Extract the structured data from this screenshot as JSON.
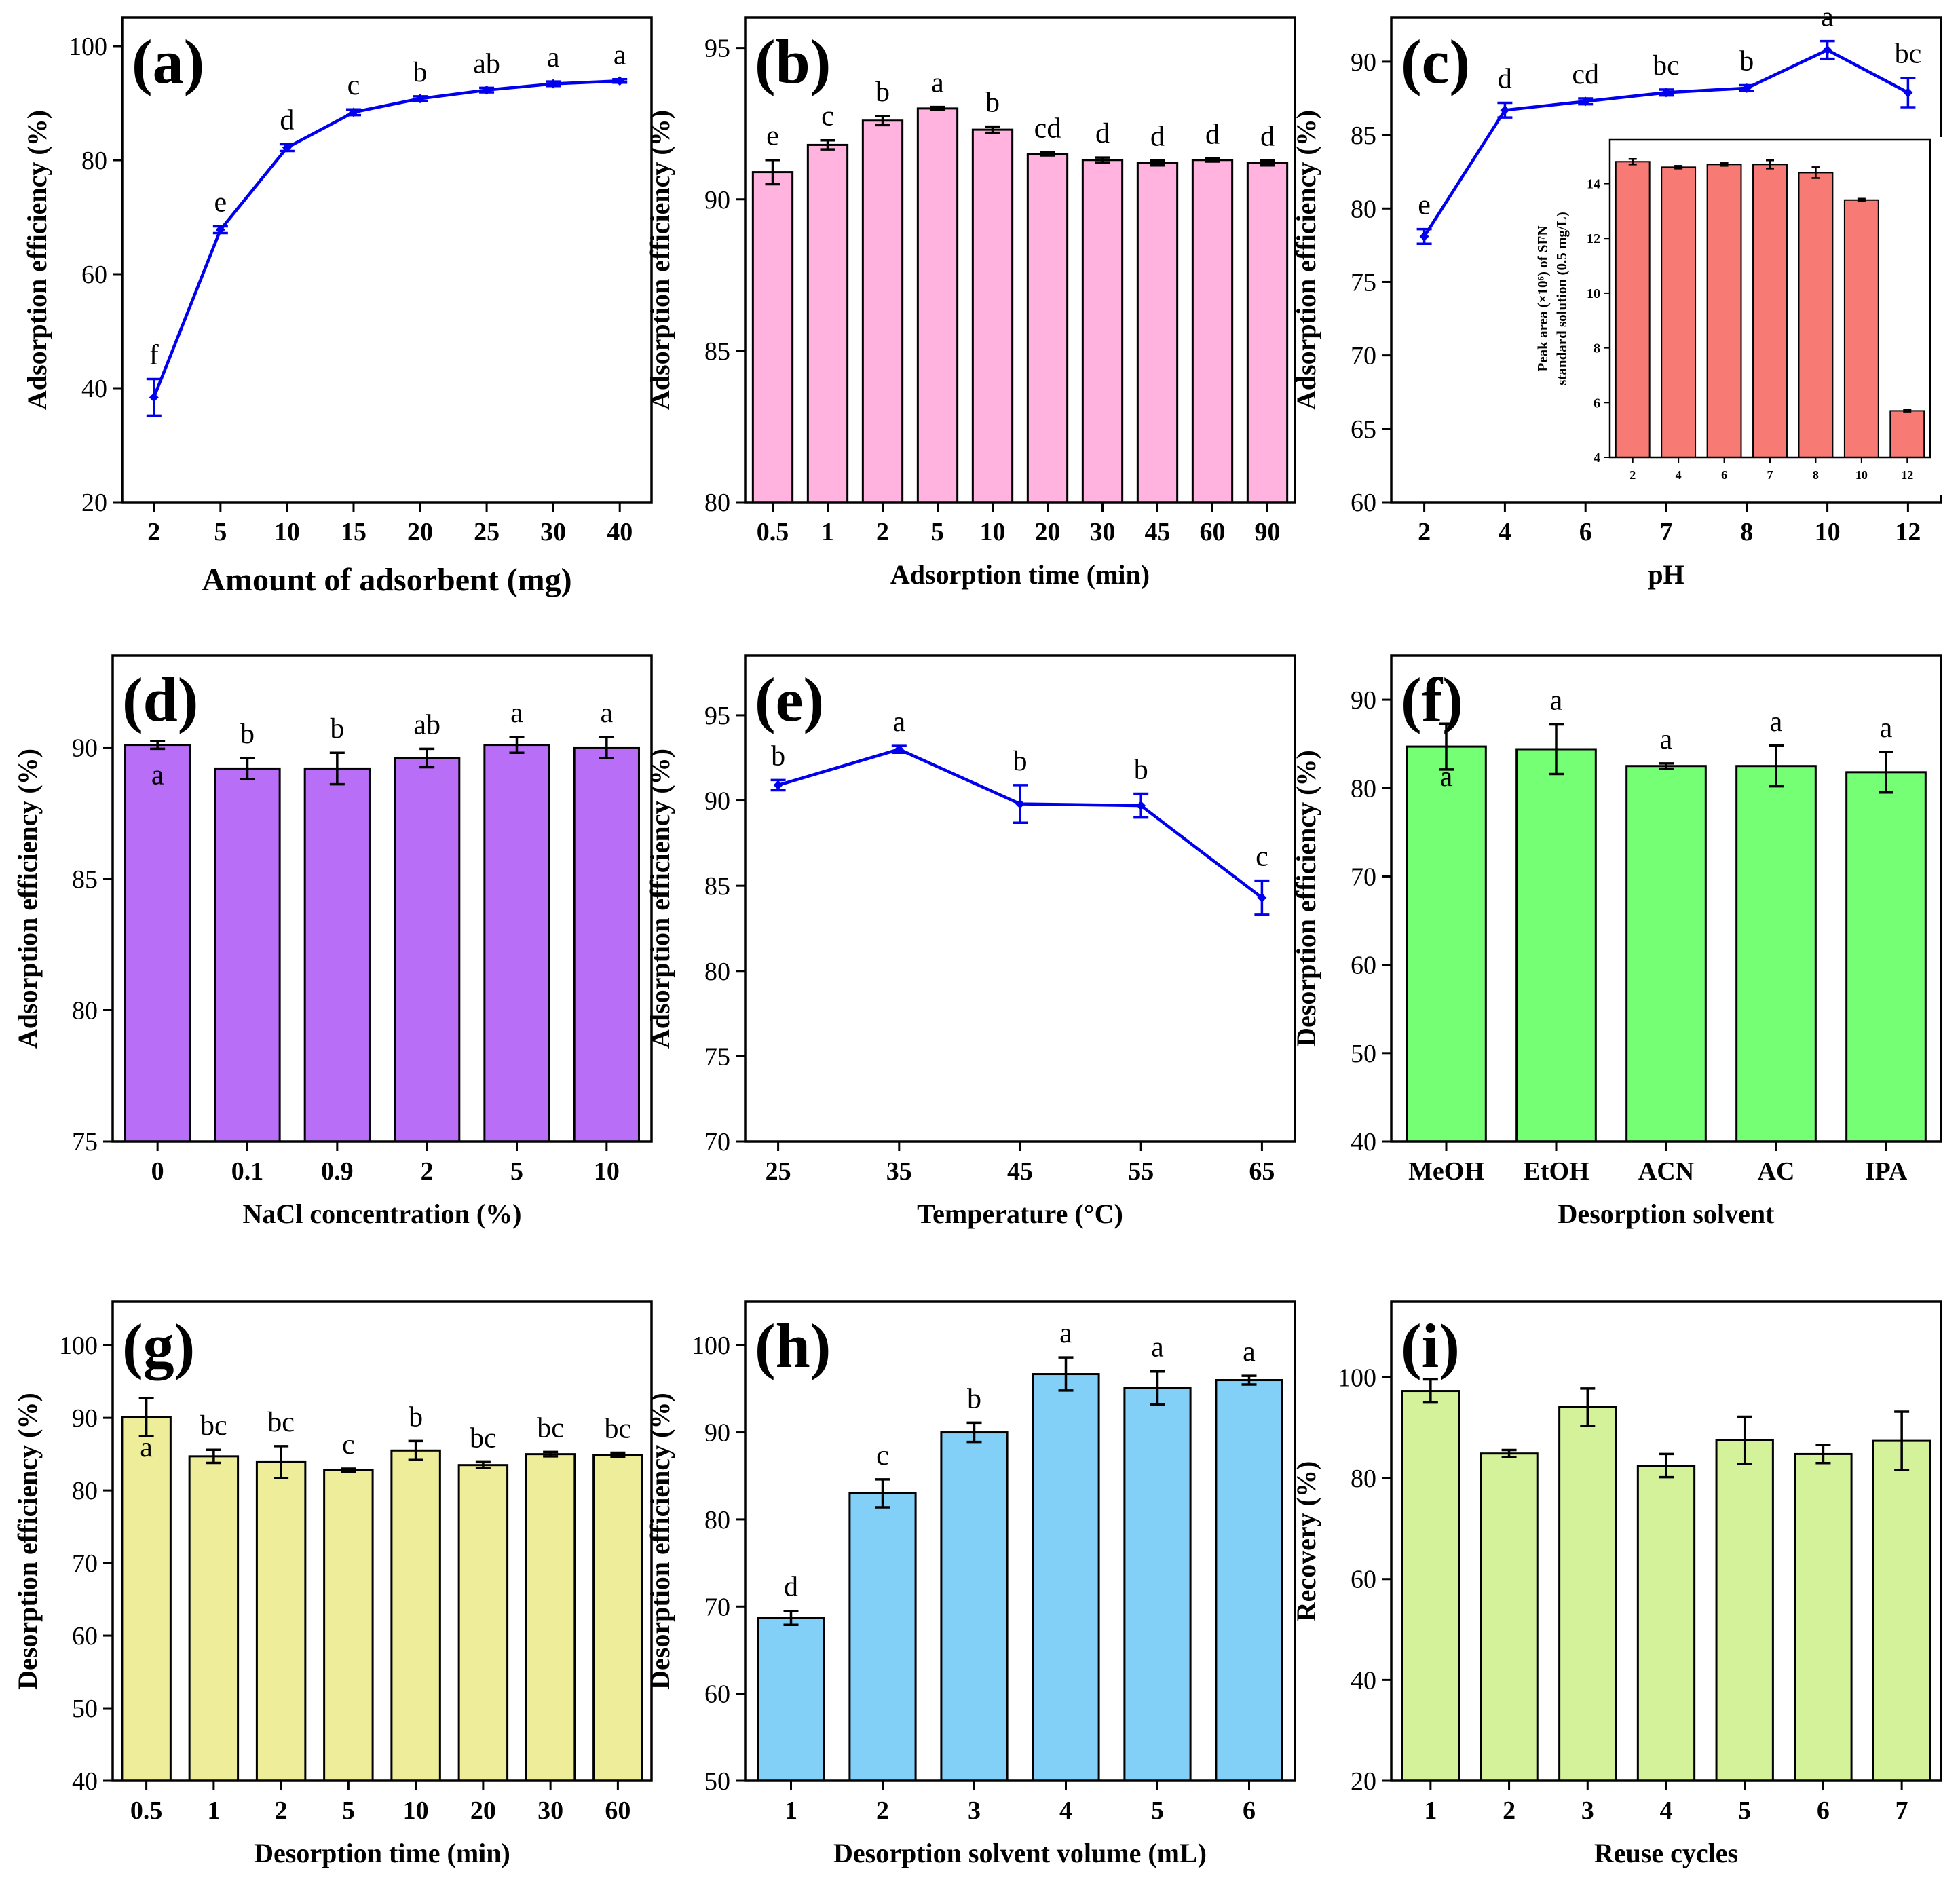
{
  "figure": {
    "description_text": ""
  },
  "colors": {
    "line_blue": "#0000ee",
    "pink": "#ffb3de",
    "salmon": "#f77a74",
    "purple": "#b86ef7",
    "green": "#75ff75",
    "yellow": "#eeee9a",
    "sky": "#82cff8",
    "lime": "#d3f29a"
  },
  "chart_data": [
    {
      "panel": "a",
      "type": "line",
      "label": "(a)",
      "color": "line_blue",
      "categories": [
        "2",
        "5",
        "10",
        "15",
        "20",
        "25",
        "30",
        "40"
      ],
      "values": [
        38.4,
        67.8,
        82.2,
        88.4,
        90.8,
        92.3,
        93.4,
        93.9
      ],
      "errors": [
        3.2,
        0.6,
        0.6,
        0.5,
        0.4,
        0.4,
        0.4,
        0.3
      ],
      "letters": [
        "f",
        "e",
        "d",
        "c",
        "b",
        "ab",
        "a",
        "a"
      ],
      "xlabel": "Amount of adsorbent (mg)",
      "ylabel": "Adsorption efficiency (%)",
      "ylim": [
        20,
        105
      ],
      "yticks": [
        20,
        40,
        60,
        80,
        100
      ]
    },
    {
      "panel": "b",
      "type": "bar",
      "label": "(b)",
      "color": "pink",
      "categories": [
        "0.5",
        "1",
        "2",
        "5",
        "10",
        "20",
        "30",
        "45",
        "60",
        "90"
      ],
      "values": [
        90.9,
        91.8,
        92.6,
        93.0,
        92.3,
        91.5,
        91.3,
        91.2,
        91.3,
        91.2
      ],
      "errors": [
        0.4,
        0.15,
        0.15,
        0.05,
        0.1,
        0.05,
        0.08,
        0.08,
        0.05,
        0.08
      ],
      "letters": [
        "e",
        "c",
        "b",
        "a",
        "b",
        "cd",
        "d",
        "d",
        "d",
        "d"
      ],
      "xlabel": "Adsorption time (min)",
      "ylabel": "Adsorption efficiency (%)",
      "ylim": [
        80,
        96
      ],
      "yticks": [
        80,
        85,
        90,
        95
      ]
    },
    {
      "panel": "c",
      "type": "line",
      "label": "(c)",
      "color": "line_blue",
      "categories": [
        "2",
        "4",
        "6",
        "7",
        "8",
        "10",
        "12"
      ],
      "values": [
        78.1,
        86.7,
        87.3,
        87.9,
        88.2,
        90.8,
        87.9
      ],
      "errors": [
        0.5,
        0.5,
        0.2,
        0.2,
        0.2,
        0.6,
        1.0
      ],
      "letters": [
        "e",
        "d",
        "cd",
        "bc",
        "b",
        "a",
        "bc"
      ],
      "xlabel": "pH",
      "ylabel": "Adsorption efficiency (%)",
      "ylim": [
        60,
        93
      ],
      "yticks": [
        60,
        65,
        70,
        75,
        80,
        85,
        90
      ],
      "inset": {
        "type": "bar",
        "color": "salmon",
        "categories": [
          "2",
          "4",
          "6",
          "7",
          "8",
          "10",
          "12"
        ],
        "values": [
          14.8,
          14.6,
          14.7,
          14.7,
          14.4,
          13.4,
          5.7
        ],
        "errors": [
          0.1,
          0.05,
          0.05,
          0.15,
          0.2,
          0.05,
          0.03
        ],
        "ylabel_line1": "Peak area (×10⁶) of SFN",
        "ylabel_line2": "standard solution (0.5 mg/L)",
        "ylim": [
          4,
          15.6
        ],
        "yticks": [
          4,
          6,
          8,
          10,
          12,
          14
        ]
      }
    },
    {
      "panel": "d",
      "type": "bar",
      "label": "(d)",
      "color": "purple",
      "categories": [
        "0",
        "0.1",
        "0.9",
        "2",
        "5",
        "10"
      ],
      "values": [
        90.1,
        89.2,
        89.2,
        89.6,
        90.1,
        90.0
      ],
      "errors": [
        0.15,
        0.4,
        0.6,
        0.35,
        0.3,
        0.4
      ],
      "letters": [
        "a",
        "b",
        "b",
        "ab",
        "a",
        "a"
      ],
      "letter_inside_first": true,
      "xlabel": "NaCl concentration (%)",
      "ylabel": "Adsorption efficiency (%)",
      "ylim": [
        75,
        93.5
      ],
      "yticks": [
        75,
        80,
        85,
        90
      ]
    },
    {
      "panel": "e",
      "type": "line",
      "label": "(e)",
      "color": "line_blue",
      "categories": [
        "25",
        "35",
        "45",
        "55",
        "65"
      ],
      "values": [
        90.9,
        93.0,
        89.8,
        89.7,
        84.3
      ],
      "errors": [
        0.3,
        0.2,
        1.1,
        0.7,
        1.0
      ],
      "letters": [
        "b",
        "a",
        "b",
        "b",
        "c"
      ],
      "xlabel": "Temperature (°C)",
      "ylabel": "Adsorption efficiency (%)",
      "ylim": [
        70,
        98.5
      ],
      "yticks": [
        70,
        75,
        80,
        85,
        90,
        95
      ]
    },
    {
      "panel": "f",
      "type": "bar",
      "label": "(f)",
      "color": "green",
      "categories": [
        "MeOH",
        "EtOH",
        "ACN",
        "AC",
        "IPA"
      ],
      "values": [
        84.7,
        84.4,
        82.5,
        82.5,
        81.8
      ],
      "errors": [
        2.6,
        2.8,
        0.3,
        2.3,
        2.3
      ],
      "letters": [
        "a",
        "a",
        "a",
        "a",
        "a"
      ],
      "letter_inside_first": true,
      "xlabel": "Desorption solvent",
      "ylabel": "Desorption efficiency (%)",
      "ylim": [
        40,
        95
      ],
      "yticks": [
        40,
        50,
        60,
        70,
        80,
        90
      ]
    },
    {
      "panel": "g",
      "type": "bar",
      "label": "(g)",
      "color": "yellow",
      "categories": [
        "0.5",
        "1",
        "2",
        "5",
        "10",
        "20",
        "30",
        "60"
      ],
      "values": [
        90.1,
        84.7,
        83.9,
        82.8,
        85.5,
        83.5,
        85.0,
        84.9
      ],
      "errors": [
        2.6,
        0.9,
        2.2,
        0.2,
        1.3,
        0.4,
        0.3,
        0.3
      ],
      "letters": [
        "a",
        "bc",
        "bc",
        "c",
        "b",
        "bc",
        "bc",
        "bc"
      ],
      "letter_inside_first": true,
      "xlabel": "Desorption time (min)",
      "ylabel": "Desorption efficiency (%)",
      "ylim": [
        40,
        106
      ],
      "yticks": [
        40,
        50,
        60,
        70,
        80,
        90,
        100
      ]
    },
    {
      "panel": "h",
      "type": "bar",
      "label": "(h)",
      "color": "sky",
      "categories": [
        "1",
        "2",
        "3",
        "4",
        "5",
        "6"
      ],
      "values": [
        68.7,
        83.0,
        90.0,
        96.7,
        95.1,
        96.0
      ],
      "errors": [
        0.8,
        1.6,
        1.1,
        1.9,
        1.9,
        0.5
      ],
      "letters": [
        "d",
        "c",
        "b",
        "a",
        "a",
        "a"
      ],
      "xlabel": "Desorption solvent volume (mL)",
      "ylabel": "Desorption efficiency (%)",
      "ylim": [
        50,
        105
      ],
      "yticks": [
        50,
        60,
        70,
        80,
        90,
        100
      ]
    },
    {
      "panel": "i",
      "type": "bar",
      "label": "(i)",
      "color": "lime",
      "categories": [
        "1",
        "2",
        "3",
        "4",
        "5",
        "6",
        "7"
      ],
      "values": [
        97.3,
        84.9,
        94.1,
        82.5,
        87.5,
        84.8,
        87.4
      ],
      "errors": [
        2.3,
        0.7,
        3.7,
        2.3,
        4.7,
        1.8,
        5.8
      ],
      "letters": [],
      "xlabel": "Reuse cycles",
      "ylabel": "Recovery (%)",
      "ylim": [
        20,
        115
      ],
      "yticks": [
        20,
        40,
        60,
        80,
        100
      ]
    }
  ]
}
